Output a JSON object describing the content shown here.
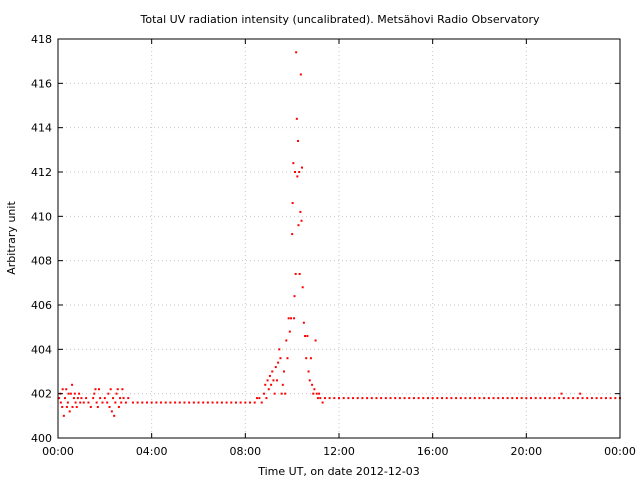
{
  "chart_data": {
    "type": "scatter",
    "title": "Total UV radiation intensity (uncalibrated). Metsähovi Radio Observatory",
    "xlabel": "Time UT, on date 2012-12-03",
    "ylabel": "Arbitrary unit",
    "xlim": [
      0,
      24
    ],
    "ylim": [
      400,
      418
    ],
    "x_ticks": [
      0,
      4,
      8,
      12,
      16,
      20,
      24
    ],
    "x_tick_labels": [
      "00:00",
      "04:00",
      "08:00",
      "12:00",
      "16:00",
      "20:00",
      "00:00"
    ],
    "y_ticks": [
      400,
      402,
      404,
      406,
      408,
      410,
      412,
      414,
      416,
      418
    ],
    "y_tick_labels": [
      "400",
      "402",
      "404",
      "406",
      "408",
      "410",
      "412",
      "414",
      "416",
      "418"
    ],
    "grid": true,
    "series_color": "#ff0000",
    "series": [
      {
        "points": [
          [
            0.05,
            401.8
          ],
          [
            0.1,
            402.0
          ],
          [
            0.12,
            401.6
          ],
          [
            0.18,
            401.4
          ],
          [
            0.2,
            402.2
          ],
          [
            0.25,
            401.0
          ],
          [
            0.3,
            401.8
          ],
          [
            0.35,
            402.2
          ],
          [
            0.38,
            401.4
          ],
          [
            0.42,
            401.6
          ],
          [
            0.45,
            402.0
          ],
          [
            0.5,
            401.2
          ],
          [
            0.55,
            402.0
          ],
          [
            0.6,
            402.4
          ],
          [
            0.62,
            401.4
          ],
          [
            0.68,
            401.8
          ],
          [
            0.72,
            402.0
          ],
          [
            0.75,
            401.6
          ],
          [
            0.8,
            401.4
          ],
          [
            0.85,
            401.8
          ],
          [
            0.9,
            402.0
          ],
          [
            0.95,
            401.6
          ],
          [
            1.0,
            401.8
          ],
          [
            1.1,
            401.6
          ],
          [
            1.2,
            401.8
          ],
          [
            1.3,
            401.6
          ],
          [
            1.4,
            401.4
          ],
          [
            1.5,
            401.8
          ],
          [
            1.55,
            402.0
          ],
          [
            1.6,
            402.2
          ],
          [
            1.65,
            401.6
          ],
          [
            1.7,
            401.4
          ],
          [
            1.75,
            402.2
          ],
          [
            1.8,
            401.8
          ],
          [
            1.9,
            401.6
          ],
          [
            2.0,
            401.8
          ],
          [
            2.1,
            401.6
          ],
          [
            2.15,
            402.0
          ],
          [
            2.2,
            401.4
          ],
          [
            2.25,
            402.2
          ],
          [
            2.3,
            401.2
          ],
          [
            2.35,
            401.8
          ],
          [
            2.4,
            401.0
          ],
          [
            2.45,
            401.6
          ],
          [
            2.5,
            402.0
          ],
          [
            2.55,
            402.2
          ],
          [
            2.6,
            401.4
          ],
          [
            2.65,
            401.8
          ],
          [
            2.7,
            401.6
          ],
          [
            2.75,
            402.2
          ],
          [
            2.8,
            401.8
          ],
          [
            2.9,
            401.6
          ],
          [
            3.0,
            401.8
          ],
          [
            3.2,
            401.6
          ],
          [
            3.4,
            401.6
          ],
          [
            3.6,
            401.6
          ],
          [
            3.8,
            401.6
          ],
          [
            4.0,
            401.6
          ],
          [
            4.2,
            401.6
          ],
          [
            4.4,
            401.6
          ],
          [
            4.6,
            401.6
          ],
          [
            4.8,
            401.6
          ],
          [
            5.0,
            401.6
          ],
          [
            5.2,
            401.6
          ],
          [
            5.4,
            401.6
          ],
          [
            5.6,
            401.6
          ],
          [
            5.8,
            401.6
          ],
          [
            6.0,
            401.6
          ],
          [
            6.2,
            401.6
          ],
          [
            6.4,
            401.6
          ],
          [
            6.6,
            401.6
          ],
          [
            6.8,
            401.6
          ],
          [
            7.0,
            401.6
          ],
          [
            7.2,
            401.6
          ],
          [
            7.4,
            401.6
          ],
          [
            7.6,
            401.6
          ],
          [
            7.8,
            401.6
          ],
          [
            8.0,
            401.6
          ],
          [
            8.2,
            401.6
          ],
          [
            8.4,
            401.6
          ],
          [
            8.5,
            401.8
          ],
          [
            8.6,
            401.8
          ],
          [
            8.7,
            401.6
          ],
          [
            8.8,
            402.0
          ],
          [
            8.85,
            402.4
          ],
          [
            8.9,
            401.8
          ],
          [
            8.95,
            402.6
          ],
          [
            9.0,
            402.2
          ],
          [
            9.05,
            402.8
          ],
          [
            9.1,
            402.4
          ],
          [
            9.15,
            403.0
          ],
          [
            9.2,
            402.6
          ],
          [
            9.25,
            402.0
          ],
          [
            9.3,
            403.2
          ],
          [
            9.35,
            402.6
          ],
          [
            9.4,
            403.4
          ],
          [
            9.45,
            404.0
          ],
          [
            9.5,
            403.6
          ],
          [
            9.55,
            402.0
          ],
          [
            9.6,
            402.4
          ],
          [
            9.65,
            403.0
          ],
          [
            9.7,
            402.0
          ],
          [
            9.75,
            404.4
          ],
          [
            9.8,
            403.6
          ],
          [
            9.85,
            405.4
          ],
          [
            9.9,
            404.8
          ],
          [
            9.95,
            405.4
          ],
          [
            10.0,
            409.2
          ],
          [
            10.02,
            410.6
          ],
          [
            10.05,
            412.4
          ],
          [
            10.08,
            405.4
          ],
          [
            10.1,
            406.4
          ],
          [
            10.12,
            412.0
          ],
          [
            10.15,
            407.4
          ],
          [
            10.17,
            417.4
          ],
          [
            10.2,
            414.4
          ],
          [
            10.22,
            411.8
          ],
          [
            10.25,
            413.4
          ],
          [
            10.27,
            409.6
          ],
          [
            10.3,
            412.0
          ],
          [
            10.32,
            407.4
          ],
          [
            10.35,
            410.2
          ],
          [
            10.37,
            416.4
          ],
          [
            10.4,
            409.8
          ],
          [
            10.42,
            412.2
          ],
          [
            10.45,
            406.8
          ],
          [
            10.5,
            405.2
          ],
          [
            10.55,
            404.6
          ],
          [
            10.6,
            403.6
          ],
          [
            10.65,
            404.6
          ],
          [
            10.7,
            403.0
          ],
          [
            10.75,
            402.6
          ],
          [
            10.8,
            403.6
          ],
          [
            10.85,
            402.4
          ],
          [
            10.9,
            402.0
          ],
          [
            10.95,
            402.2
          ],
          [
            11.0,
            404.4
          ],
          [
            11.05,
            402.0
          ],
          [
            11.1,
            401.8
          ],
          [
            11.15,
            402.0
          ],
          [
            11.2,
            401.8
          ],
          [
            11.3,
            401.6
          ],
          [
            11.4,
            401.8
          ],
          [
            11.6,
            401.8
          ],
          [
            11.8,
            401.8
          ],
          [
            12.0,
            401.8
          ],
          [
            12.2,
            401.8
          ],
          [
            12.4,
            401.8
          ],
          [
            12.6,
            401.8
          ],
          [
            12.8,
            401.8
          ],
          [
            13.0,
            401.8
          ],
          [
            13.2,
            401.8
          ],
          [
            13.4,
            401.8
          ],
          [
            13.6,
            401.8
          ],
          [
            13.8,
            401.8
          ],
          [
            14.0,
            401.8
          ],
          [
            14.2,
            401.8
          ],
          [
            14.4,
            401.8
          ],
          [
            14.6,
            401.8
          ],
          [
            14.8,
            401.8
          ],
          [
            15.0,
            401.8
          ],
          [
            15.2,
            401.8
          ],
          [
            15.4,
            401.8
          ],
          [
            15.6,
            401.8
          ],
          [
            15.8,
            401.8
          ],
          [
            16.0,
            401.8
          ],
          [
            16.2,
            401.8
          ],
          [
            16.4,
            401.8
          ],
          [
            16.6,
            401.8
          ],
          [
            16.8,
            401.8
          ],
          [
            17.0,
            401.8
          ],
          [
            17.2,
            401.8
          ],
          [
            17.4,
            401.8
          ],
          [
            17.6,
            401.8
          ],
          [
            17.8,
            401.8
          ],
          [
            18.0,
            401.8
          ],
          [
            18.2,
            401.8
          ],
          [
            18.4,
            401.8
          ],
          [
            18.6,
            401.8
          ],
          [
            18.8,
            401.8
          ],
          [
            19.0,
            401.8
          ],
          [
            19.2,
            401.8
          ],
          [
            19.4,
            401.8
          ],
          [
            19.6,
            401.8
          ],
          [
            19.8,
            401.8
          ],
          [
            20.0,
            401.8
          ],
          [
            20.2,
            401.8
          ],
          [
            20.4,
            401.8
          ],
          [
            20.6,
            401.8
          ],
          [
            20.8,
            401.8
          ],
          [
            21.0,
            401.8
          ],
          [
            21.2,
            401.8
          ],
          [
            21.4,
            401.8
          ],
          [
            21.5,
            402.0
          ],
          [
            21.6,
            401.8
          ],
          [
            21.8,
            401.8
          ],
          [
            22.0,
            401.8
          ],
          [
            22.2,
            401.8
          ],
          [
            22.3,
            402.0
          ],
          [
            22.4,
            401.8
          ],
          [
            22.6,
            401.8
          ],
          [
            22.8,
            401.8
          ],
          [
            23.0,
            401.8
          ],
          [
            23.2,
            401.8
          ],
          [
            23.4,
            401.8
          ],
          [
            23.6,
            401.8
          ],
          [
            23.8,
            401.8
          ],
          [
            24.0,
            401.8
          ]
        ]
      }
    ]
  }
}
